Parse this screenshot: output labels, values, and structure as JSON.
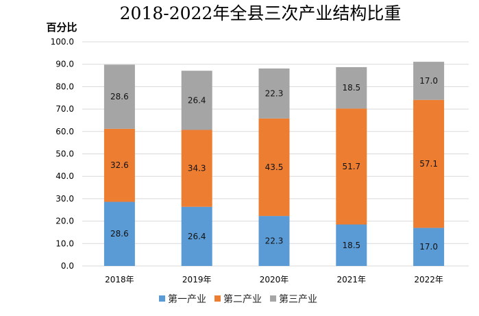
{
  "chart_data": {
    "type": "bar",
    "stacked": true,
    "title": "2018-2022年全县三次产业结构比重",
    "xlabel": "",
    "ylabel": "百分比",
    "ylim": [
      0,
      100
    ],
    "yticks": [
      "0.0",
      "10.0",
      "20.0",
      "30.0",
      "40.0",
      "50.0",
      "60.0",
      "70.0",
      "80.0",
      "90.0",
      "100.0"
    ],
    "grid": true,
    "legend_position": "bottom",
    "categories": [
      "2018年",
      "2019年",
      "2020年",
      "2021年",
      "2022年"
    ],
    "series": [
      {
        "name": "第一产业",
        "color": "#5B9BD5",
        "values": [
          28.6,
          26.4,
          22.3,
          18.5,
          17.0
        ],
        "labels": [
          "28.6",
          "26.4",
          "22.3",
          "18.5",
          "17.0"
        ]
      },
      {
        "name": "第二产业",
        "color": "#ED7D31",
        "values": [
          32.6,
          34.3,
          43.5,
          51.7,
          57.1
        ],
        "labels": [
          "32.6",
          "34.3",
          "43.5",
          "51.7",
          "57.1"
        ]
      },
      {
        "name": "第三产业",
        "color": "#A5A5A5",
        "values": [
          28.6,
          26.4,
          22.3,
          18.5,
          17.0
        ],
        "labels": [
          "28.6",
          "26.4",
          "22.3",
          "18.5",
          "17.0"
        ]
      }
    ]
  }
}
